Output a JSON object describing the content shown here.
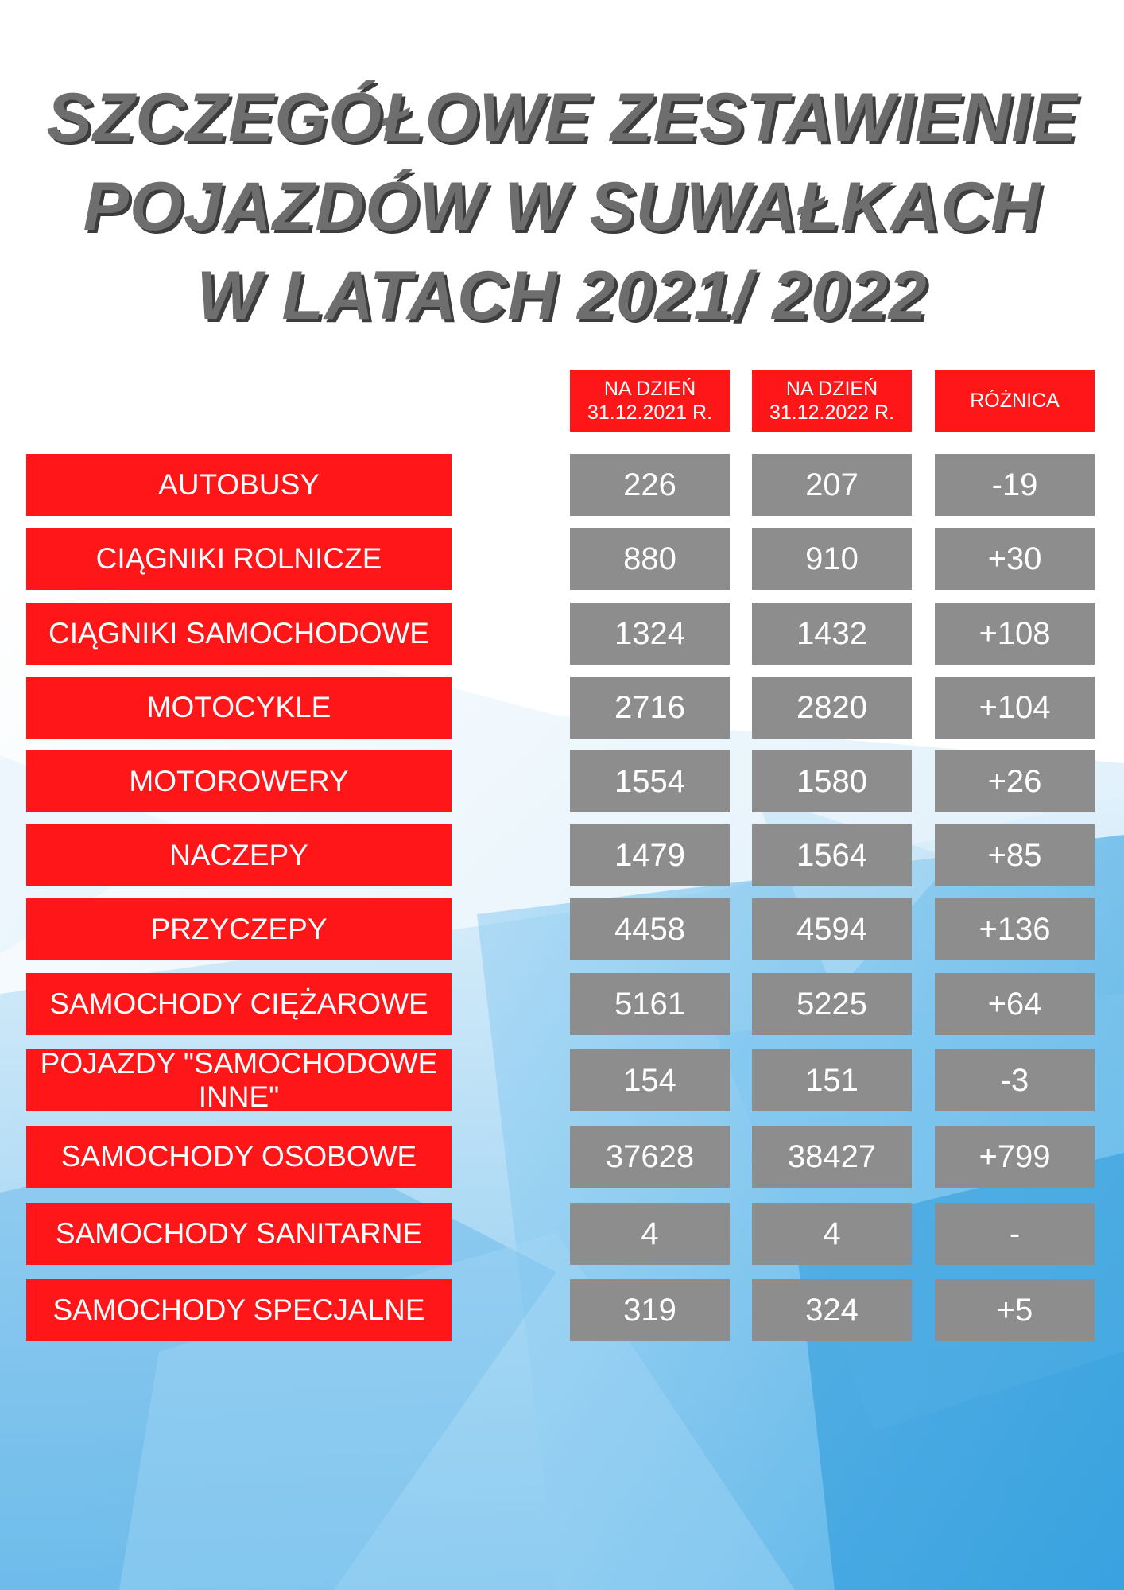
{
  "title": {
    "line1": "SZCZEGÓŁOWE ZESTAWIENIE",
    "line2": "POJAZDÓW W SUWAŁKACH",
    "line3": "W LATACH 2021/ 2022"
  },
  "colors": {
    "label_bg": "#fe1618",
    "value_bg": "#8d8d8d",
    "title_text": "#6e6e6e",
    "background_accent": "#3aa6e0"
  },
  "chart_data": {
    "type": "table",
    "title": "SZCZEGÓŁOWE ZESTAWIENIE POJAZDÓW W SUWAŁKACH W LATACH 2021/ 2022",
    "columns": [
      {
        "line1": "NA DZIEŃ",
        "line2": "31.12.2021 R."
      },
      {
        "line1": "NA DZIEŃ",
        "line2": "31.12.2022 R."
      },
      {
        "line1": "RÓŻNICA",
        "line2": ""
      }
    ],
    "rows": [
      {
        "label": "AUTOBUSY",
        "v2021": "226",
        "v2022": "207",
        "diff": "-19"
      },
      {
        "label": "CIĄGNIKI ROLNICZE",
        "v2021": "880",
        "v2022": "910",
        "diff": "+30"
      },
      {
        "label": "CIĄGNIKI SAMOCHODOWE",
        "v2021": "1324",
        "v2022": "1432",
        "diff": "+108"
      },
      {
        "label": "MOTOCYKLE",
        "v2021": "2716",
        "v2022": "2820",
        "diff": "+104"
      },
      {
        "label": "MOTOROWERY",
        "v2021": "1554",
        "v2022": "1580",
        "diff": "+26"
      },
      {
        "label": "NACZEPY",
        "v2021": "1479",
        "v2022": "1564",
        "diff": "+85"
      },
      {
        "label": "PRZYCZEPY",
        "v2021": "4458",
        "v2022": "4594",
        "diff": "+136"
      },
      {
        "label": "SAMOCHODY CIĘŻAROWE",
        "v2021": "5161",
        "v2022": "5225",
        "diff": "+64"
      },
      {
        "label": "POJAZDY \"SAMOCHODOWE INNE\"",
        "v2021": "154",
        "v2022": "151",
        "diff": "-3"
      },
      {
        "label": "SAMOCHODY OSOBOWE",
        "v2021": "37628",
        "v2022": "38427",
        "diff": "+799"
      },
      {
        "label": "SAMOCHODY SANITARNE",
        "v2021": "4",
        "v2022": "4",
        "diff": "-"
      },
      {
        "label": "SAMOCHODY SPECJALNE",
        "v2021": "319",
        "v2022": "324",
        "diff": "+5"
      }
    ]
  }
}
